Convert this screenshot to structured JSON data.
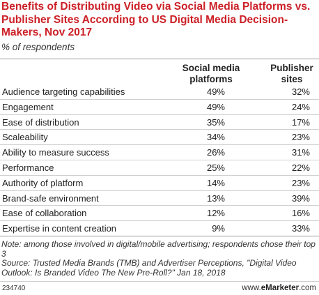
{
  "title": "Benefits of Distributing Video via Social Media Platforms vs. Publisher Sites According to US Digital Media Decision-Makers, Nov 2017",
  "subtitle": "% of respondents",
  "columns": [
    "Social media platforms",
    "Publisher sites"
  ],
  "rows": [
    {
      "label": "Audience targeting capabilities",
      "social": "49%",
      "publisher": "32%"
    },
    {
      "label": "Engagement",
      "social": "49%",
      "publisher": "24%"
    },
    {
      "label": "Ease of distribution",
      "social": "35%",
      "publisher": "17%"
    },
    {
      "label": "Scaleability",
      "social": "34%",
      "publisher": "23%"
    },
    {
      "label": "Ability to measure success",
      "social": "26%",
      "publisher": "31%"
    },
    {
      "label": "Performance",
      "social": "25%",
      "publisher": "22%"
    },
    {
      "label": "Authority of platform",
      "social": "14%",
      "publisher": "23%"
    },
    {
      "label": "Brand-safe environment",
      "social": "13%",
      "publisher": "39%"
    },
    {
      "label": "Ease of collaboration",
      "social": "12%",
      "publisher": "16%"
    },
    {
      "label": "Expertise in content creation",
      "social": "9%",
      "publisher": "33%"
    }
  ],
  "note": "Note: among those involved in digital/mobile advertising; respondents chose their top 3",
  "source": "Source: Trusted Media Brands (TMB) and Advertiser Perceptions, \"Digital Video Outlook: Is Branded Video The New Pre-Roll?\" Jan 18, 2018",
  "footer": {
    "chart_id": "234740",
    "brand_prefix": "www.",
    "brand_name": "eMarketer",
    "brand_suffix": ".com"
  },
  "colors": {
    "title": "#cc2027",
    "rule": "#9a9a9a",
    "row_rule": "#cfcfcf"
  },
  "chart_data": {
    "type": "table",
    "title": "Benefits of Distributing Video via Social Media Platforms vs. Publisher Sites According to US Digital Media Decision-Makers, Nov 2017",
    "subtitle": "% of respondents",
    "categories": [
      "Audience targeting capabilities",
      "Engagement",
      "Ease of distribution",
      "Scaleability",
      "Ability to measure success",
      "Performance",
      "Authority of platform",
      "Brand-safe environment",
      "Ease of collaboration",
      "Expertise in content creation"
    ],
    "series": [
      {
        "name": "Social media platforms",
        "values": [
          49,
          49,
          35,
          34,
          26,
          25,
          14,
          13,
          12,
          9
        ]
      },
      {
        "name": "Publisher sites",
        "values": [
          32,
          24,
          17,
          23,
          31,
          22,
          23,
          39,
          16,
          33
        ]
      }
    ],
    "unit": "%"
  }
}
